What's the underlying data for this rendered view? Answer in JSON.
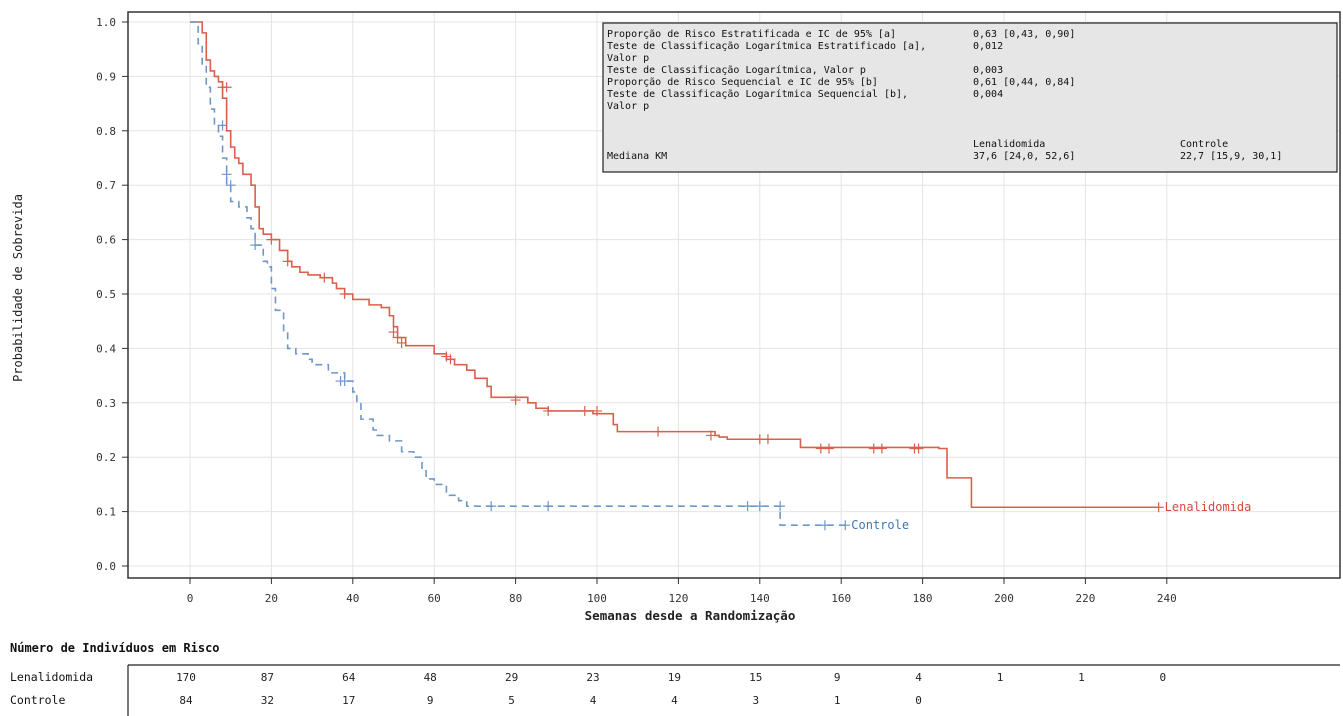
{
  "chart_data": {
    "type": "line",
    "subtype": "kaplan-meier",
    "title": "",
    "xlabel": "Semanas desde a Randomização",
    "ylabel": "Probabilidade de Sobrevida",
    "xlim": [
      -20,
      280
    ],
    "ylim": [
      -0.03,
      1.02
    ],
    "x_ticks": [
      0,
      20,
      40,
      60,
      80,
      100,
      120,
      140,
      160,
      180,
      200,
      220,
      240
    ],
    "y_ticks": [
      0.0,
      0.1,
      0.2,
      0.3,
      0.4,
      0.5,
      0.6,
      0.7,
      0.8,
      0.9,
      1.0
    ],
    "y_tick_labels": [
      "0.0",
      "0.1",
      "0.2",
      "0.3",
      "0.4",
      "0.5",
      "0.6",
      "0.7",
      "0.8",
      "0.9",
      "1.0"
    ],
    "grid": true,
    "series": [
      {
        "name": "Lenalidomida",
        "color": "#d9604c",
        "style": "solid",
        "steps": [
          [
            0,
            1.0
          ],
          [
            3,
            0.98
          ],
          [
            4,
            0.93
          ],
          [
            5,
            0.91
          ],
          [
            6,
            0.9
          ],
          [
            7,
            0.89
          ],
          [
            8,
            0.86
          ],
          [
            9,
            0.8
          ],
          [
            10,
            0.77
          ],
          [
            11,
            0.75
          ],
          [
            12,
            0.74
          ],
          [
            13,
            0.72
          ],
          [
            14,
            0.72
          ],
          [
            15,
            0.7
          ],
          [
            16,
            0.66
          ],
          [
            17,
            0.62
          ],
          [
            18,
            0.61
          ],
          [
            20,
            0.6
          ],
          [
            22,
            0.58
          ],
          [
            24,
            0.56
          ],
          [
            25,
            0.55
          ],
          [
            27,
            0.54
          ],
          [
            29,
            0.535
          ],
          [
            32,
            0.53
          ],
          [
            35,
            0.52
          ],
          [
            36,
            0.51
          ],
          [
            38,
            0.5
          ],
          [
            40,
            0.49
          ],
          [
            44,
            0.48
          ],
          [
            47,
            0.475
          ],
          [
            49,
            0.46
          ],
          [
            50,
            0.44
          ],
          [
            51,
            0.42
          ],
          [
            53,
            0.405
          ],
          [
            60,
            0.39
          ],
          [
            63,
            0.38
          ],
          [
            65,
            0.37
          ],
          [
            68,
            0.36
          ],
          [
            70,
            0.345
          ],
          [
            73,
            0.33
          ],
          [
            74,
            0.31
          ],
          [
            83,
            0.3
          ],
          [
            85,
            0.29
          ],
          [
            88,
            0.285
          ],
          [
            99,
            0.28
          ],
          [
            104,
            0.26
          ],
          [
            105,
            0.247
          ],
          [
            129,
            0.24
          ],
          [
            130,
            0.237
          ],
          [
            132,
            0.233
          ],
          [
            150,
            0.218
          ],
          [
            184,
            0.216
          ],
          [
            186,
            0.162
          ],
          [
            192,
            0.108
          ],
          [
            238,
            0.108
          ]
        ],
        "censors": [
          [
            8,
            0.88
          ],
          [
            9,
            0.88
          ],
          [
            20,
            0.6
          ],
          [
            24,
            0.56
          ],
          [
            33,
            0.53
          ],
          [
            38,
            0.5
          ],
          [
            50,
            0.43
          ],
          [
            51,
            0.42
          ],
          [
            52,
            0.41
          ],
          [
            63,
            0.385
          ],
          [
            64,
            0.38
          ],
          [
            80,
            0.305
          ],
          [
            88,
            0.285
          ],
          [
            97,
            0.285
          ],
          [
            100,
            0.285
          ],
          [
            115,
            0.247
          ],
          [
            128,
            0.24
          ],
          [
            140,
            0.233
          ],
          [
            142,
            0.233
          ],
          [
            155,
            0.216
          ],
          [
            157,
            0.216
          ],
          [
            168,
            0.216
          ],
          [
            170,
            0.216
          ],
          [
            178,
            0.216
          ],
          [
            179,
            0.216
          ],
          [
            238,
            0.108
          ]
        ],
        "label": "Lenalidomida"
      },
      {
        "name": "Controle",
        "color": "#6e96c8",
        "style": "dashed",
        "steps": [
          [
            0,
            1.0
          ],
          [
            2,
            0.96
          ],
          [
            3,
            0.92
          ],
          [
            4,
            0.88
          ],
          [
            5,
            0.84
          ],
          [
            6,
            0.81
          ],
          [
            7,
            0.79
          ],
          [
            8,
            0.75
          ],
          [
            9,
            0.7
          ],
          [
            10,
            0.67
          ],
          [
            12,
            0.66
          ],
          [
            14,
            0.64
          ],
          [
            15,
            0.62
          ],
          [
            16,
            0.59
          ],
          [
            18,
            0.56
          ],
          [
            19,
            0.55
          ],
          [
            20,
            0.51
          ],
          [
            21,
            0.47
          ],
          [
            23,
            0.43
          ],
          [
            24,
            0.4
          ],
          [
            26,
            0.39
          ],
          [
            29,
            0.38
          ],
          [
            30,
            0.37
          ],
          [
            34,
            0.355
          ],
          [
            38,
            0.34
          ],
          [
            40,
            0.32
          ],
          [
            41,
            0.3
          ],
          [
            42,
            0.27
          ],
          [
            45,
            0.25
          ],
          [
            46,
            0.24
          ],
          [
            49,
            0.23
          ],
          [
            52,
            0.21
          ],
          [
            55,
            0.2
          ],
          [
            57,
            0.18
          ],
          [
            58,
            0.16
          ],
          [
            60,
            0.15
          ],
          [
            63,
            0.13
          ],
          [
            66,
            0.12
          ],
          [
            68,
            0.11
          ],
          [
            145,
            0.075
          ],
          [
            161,
            0.075
          ]
        ],
        "censors": [
          [
            8,
            0.81
          ],
          [
            9,
            0.72
          ],
          [
            10,
            0.7
          ],
          [
            16,
            0.59
          ],
          [
            37,
            0.34
          ],
          [
            38,
            0.34
          ],
          [
            74,
            0.11
          ],
          [
            88,
            0.11
          ],
          [
            137,
            0.11
          ],
          [
            140,
            0.11
          ],
          [
            145,
            0.11
          ],
          [
            156,
            0.075
          ],
          [
            161,
            0.075
          ]
        ],
        "label": "Controle"
      }
    ],
    "stats_table": {
      "rows": [
        {
          "label": "Proporção de Risco Estratificada e IC de 95% [a]",
          "value": "0,63 [0,43, 0,90]"
        },
        {
          "label": "Teste de Classificação Logarítmica Estratificado [a],",
          "value": "0,012"
        },
        {
          "label": "Valor p",
          "value": ""
        },
        {
          "label": "Teste de Classificação Logarítmica, Valor p",
          "value": "0,003"
        },
        {
          "label": "Proporção de Risco Sequencial e IC de 95% [b]",
          "value": "0,61 [0,44, 0,84]"
        },
        {
          "label": "Teste de Classificação Logarítmica Sequencial [b],",
          "value": "0,004"
        },
        {
          "label": "Valor p",
          "value": ""
        }
      ],
      "col_headers": [
        "Lenalidomida",
        "Controle"
      ],
      "median_label": "Mediana KM",
      "median_values": [
        "37,6 [24,0, 52,6]",
        "22,7 [15,9, 30,1]"
      ]
    },
    "at_risk": {
      "title": "Número de Indivíduos em Risco",
      "times": [
        0,
        20,
        40,
        60,
        80,
        100,
        120,
        140,
        160,
        180,
        200,
        220,
        240
      ],
      "rows": [
        {
          "label": "Lenalidomida",
          "values": [
            "170",
            "87",
            "64",
            "48",
            "29",
            "23",
            "19",
            "15",
            "9",
            "4",
            "1",
            "1",
            "0"
          ]
        },
        {
          "label": "Controle",
          "values": [
            "84",
            "32",
            "17",
            "9",
            "5",
            "4",
            "4",
            "3",
            "1",
            "0"
          ]
        }
      ]
    }
  }
}
